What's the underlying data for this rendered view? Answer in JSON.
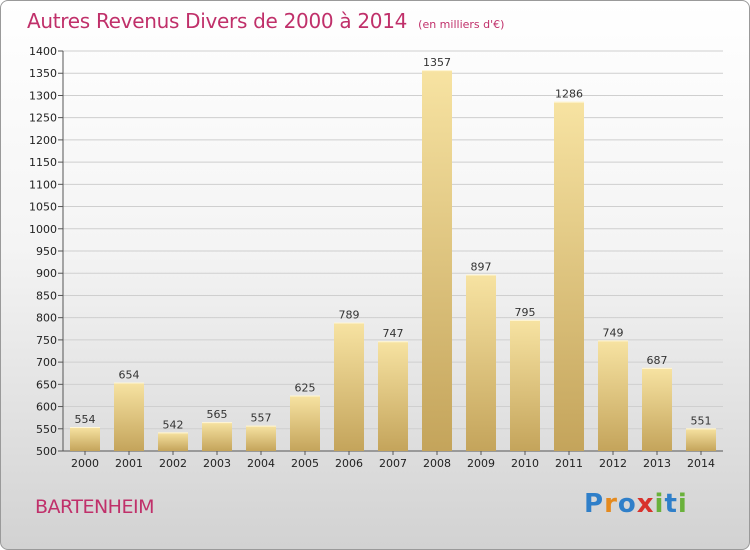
{
  "title": "Autres Revenus Divers de 2000 à 2014",
  "subtitle": "(en milliers d'€)",
  "commune": "BARTENHEIM",
  "logo": {
    "text": "Proxiti",
    "letters": [
      "P",
      "r",
      "o",
      "x",
      "i",
      "t",
      "i"
    ],
    "colors": [
      "#2f7fc9",
      "#e58a1e",
      "#2f7fc9",
      "#d8322c",
      "#6ab13b",
      "#2f7fc9",
      "#6ab13b"
    ]
  },
  "colors": {
    "title": "#c0306a",
    "bar_light": "#f7e3a2",
    "bar_dark": "#c4a45b",
    "grid": "#cfcfcf"
  },
  "chart_data": {
    "type": "bar",
    "title": "Autres Revenus Divers de 2000 à 2014",
    "subtitle": "(en milliers d'€)",
    "categories": [
      "2000",
      "2001",
      "2002",
      "2003",
      "2004",
      "2005",
      "2006",
      "2007",
      "2008",
      "2009",
      "2010",
      "2011",
      "2012",
      "2013",
      "2014"
    ],
    "values": [
      554,
      654,
      542,
      565,
      557,
      625,
      789,
      747,
      1357,
      897,
      795,
      1286,
      749,
      687,
      551
    ],
    "ylim": [
      500,
      1400
    ],
    "ytick_step": 50,
    "xlabel": "",
    "ylabel": "",
    "grid": true,
    "data_labels": true
  }
}
